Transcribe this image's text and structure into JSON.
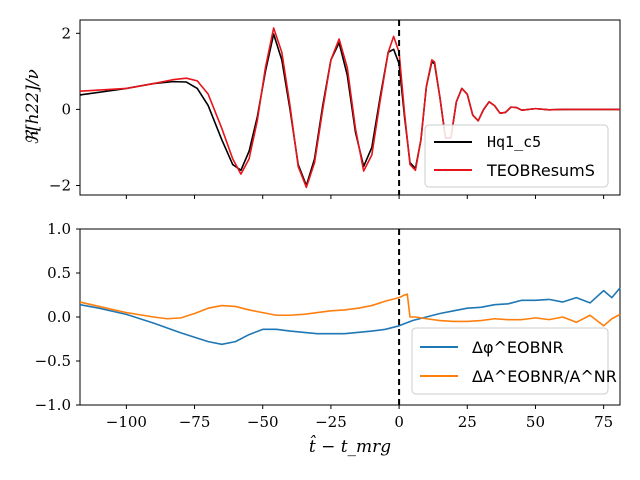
{
  "colors": {
    "hq": "#000000",
    "teob": "#e8141b",
    "dphi": "#1f77b4",
    "damp": "#ff7f0e"
  },
  "chart_data": [
    {
      "type": "line",
      "panel": "top",
      "ylabel": "ℜ[h22]/ν",
      "xlim": [
        -117,
        81
      ],
      "ylim": [
        -2.25,
        2.35
      ],
      "xticks": [
        -100,
        -75,
        -50,
        -25,
        0,
        25,
        50,
        75
      ],
      "yticks": [
        -2,
        0,
        2
      ],
      "ytick_labels": [
        "−2",
        "0",
        "2"
      ],
      "vline_x": 0,
      "legend": [
        "Hq1_c5",
        "TEOBResumS"
      ],
      "legend_position": "lower-right",
      "series": [
        {
          "name": "Hq1_c5",
          "x": [
            -117,
            -100,
            -90,
            -83,
            -78,
            -74,
            -70,
            -65,
            -61,
            -58,
            -55,
            -52,
            -49,
            -46,
            -43,
            -40,
            -37,
            -34,
            -31,
            -28,
            -25,
            -22,
            -19,
            -16,
            -13,
            -10,
            -7,
            -4,
            -2,
            0,
            2,
            4,
            6,
            8,
            10,
            12,
            13,
            15,
            17,
            19,
            21,
            23,
            25,
            27,
            29,
            31,
            33,
            35,
            37,
            39,
            41,
            43,
            45,
            50,
            55,
            60,
            65,
            70,
            75,
            81
          ],
          "y": [
            0.38,
            0.55,
            0.68,
            0.73,
            0.72,
            0.55,
            0.1,
            -0.8,
            -1.45,
            -1.6,
            -1.1,
            -0.2,
            1.0,
            1.98,
            1.3,
            0.0,
            -1.45,
            -2.0,
            -1.3,
            0.1,
            1.3,
            1.75,
            0.9,
            -0.6,
            -1.5,
            -1.0,
            0.3,
            1.5,
            1.58,
            1.2,
            -0.2,
            -1.4,
            -1.55,
            -0.8,
            0.6,
            1.25,
            1.2,
            0.3,
            -0.75,
            -0.75,
            0.2,
            0.55,
            0.4,
            -0.15,
            -0.3,
            0.0,
            0.2,
            0.1,
            -0.1,
            -0.08,
            0.06,
            0.05,
            -0.02,
            0.02,
            -0.01,
            0.0,
            0.0,
            0.0,
            0.0,
            0.0
          ]
        },
        {
          "name": "TEOBResumS",
          "x": [
            -117,
            -100,
            -90,
            -83,
            -78,
            -74,
            -70,
            -65,
            -61,
            -58,
            -55,
            -52,
            -49,
            -46,
            -43,
            -40,
            -37,
            -34,
            -31,
            -28,
            -25,
            -22,
            -19,
            -16,
            -13,
            -10,
            -7,
            -4,
            -2,
            0,
            2,
            4,
            6,
            8,
            10,
            12,
            13,
            15,
            17,
            19,
            21,
            23,
            25,
            27,
            29,
            31,
            33,
            35,
            37,
            39,
            41,
            43,
            45,
            50,
            55,
            60,
            65,
            70,
            75,
            81
          ],
          "y": [
            0.48,
            0.55,
            0.68,
            0.78,
            0.82,
            0.75,
            0.4,
            -0.5,
            -1.3,
            -1.7,
            -1.3,
            -0.3,
            1.1,
            2.14,
            1.5,
            0.1,
            -1.5,
            -2.05,
            -1.4,
            0.0,
            1.3,
            1.85,
            1.1,
            -0.5,
            -1.62,
            -1.2,
            0.2,
            1.5,
            1.92,
            1.5,
            -0.1,
            -1.45,
            -1.6,
            -0.8,
            0.6,
            1.3,
            1.25,
            0.3,
            -0.75,
            -0.75,
            0.2,
            0.55,
            0.4,
            -0.15,
            -0.3,
            0.0,
            0.2,
            0.1,
            -0.1,
            -0.08,
            0.06,
            0.05,
            -0.02,
            0.02,
            -0.01,
            0.0,
            0.0,
            0.0,
            0.0,
            0.0
          ]
        }
      ]
    },
    {
      "type": "line",
      "panel": "bottom",
      "xlabel": "t̂ − t_mrg",
      "xlim": [
        -117,
        81
      ],
      "ylim": [
        -1.0,
        1.0
      ],
      "xticks": [
        -100,
        -75,
        -50,
        -25,
        0,
        25,
        50,
        75
      ],
      "xtick_labels": [
        "−100",
        "−75",
        "−50",
        "−25",
        "0",
        "25",
        "50",
        "75"
      ],
      "yticks": [
        -1.0,
        -0.5,
        0.0,
        0.5,
        1.0
      ],
      "ytick_labels": [
        "−1.0",
        "−0.5",
        "0.0",
        "0.5",
        "1.0"
      ],
      "vline_x": 0,
      "legend": [
        "Δφ^EOBNR",
        "ΔA^EOBNR/A^NR"
      ],
      "legend_position": "lower-right",
      "series": [
        {
          "name": "Δφ^EOBNR",
          "x": [
            -117,
            -110,
            -100,
            -90,
            -80,
            -70,
            -65,
            -60,
            -55,
            -50,
            -45,
            -40,
            -30,
            -20,
            -10,
            -5,
            0,
            5,
            10,
            15,
            20,
            25,
            30,
            35,
            40,
            45,
            50,
            55,
            60,
            65,
            70,
            75,
            78,
            81
          ],
          "y": [
            0.14,
            0.1,
            0.03,
            -0.07,
            -0.18,
            -0.28,
            -0.31,
            -0.28,
            -0.2,
            -0.14,
            -0.14,
            -0.16,
            -0.19,
            -0.19,
            -0.16,
            -0.14,
            -0.1,
            -0.04,
            0.0,
            0.04,
            0.07,
            0.1,
            0.11,
            0.14,
            0.15,
            0.19,
            0.19,
            0.2,
            0.17,
            0.22,
            0.16,
            0.3,
            0.22,
            0.33
          ]
        },
        {
          "name": "ΔA^EOBNR/A^NR",
          "x": [
            -117,
            -110,
            -100,
            -90,
            -85,
            -80,
            -75,
            -70,
            -65,
            -60,
            -55,
            -50,
            -45,
            -40,
            -35,
            -30,
            -25,
            -20,
            -15,
            -10,
            -5,
            0,
            2,
            3,
            4,
            6,
            10,
            15,
            20,
            25,
            30,
            35,
            40,
            45,
            50,
            55,
            60,
            65,
            70,
            75,
            78,
            81
          ],
          "y": [
            0.17,
            0.12,
            0.05,
            0.0,
            -0.02,
            -0.01,
            0.04,
            0.1,
            0.13,
            0.12,
            0.08,
            0.05,
            0.02,
            0.02,
            0.03,
            0.05,
            0.07,
            0.08,
            0.1,
            0.13,
            0.18,
            0.22,
            0.25,
            0.26,
            0.0,
            0.0,
            -0.02,
            -0.04,
            -0.05,
            -0.05,
            -0.04,
            -0.02,
            -0.03,
            -0.03,
            -0.01,
            -0.03,
            0.0,
            -0.06,
            0.02,
            -0.1,
            -0.02,
            0.03
          ]
        }
      ]
    }
  ]
}
